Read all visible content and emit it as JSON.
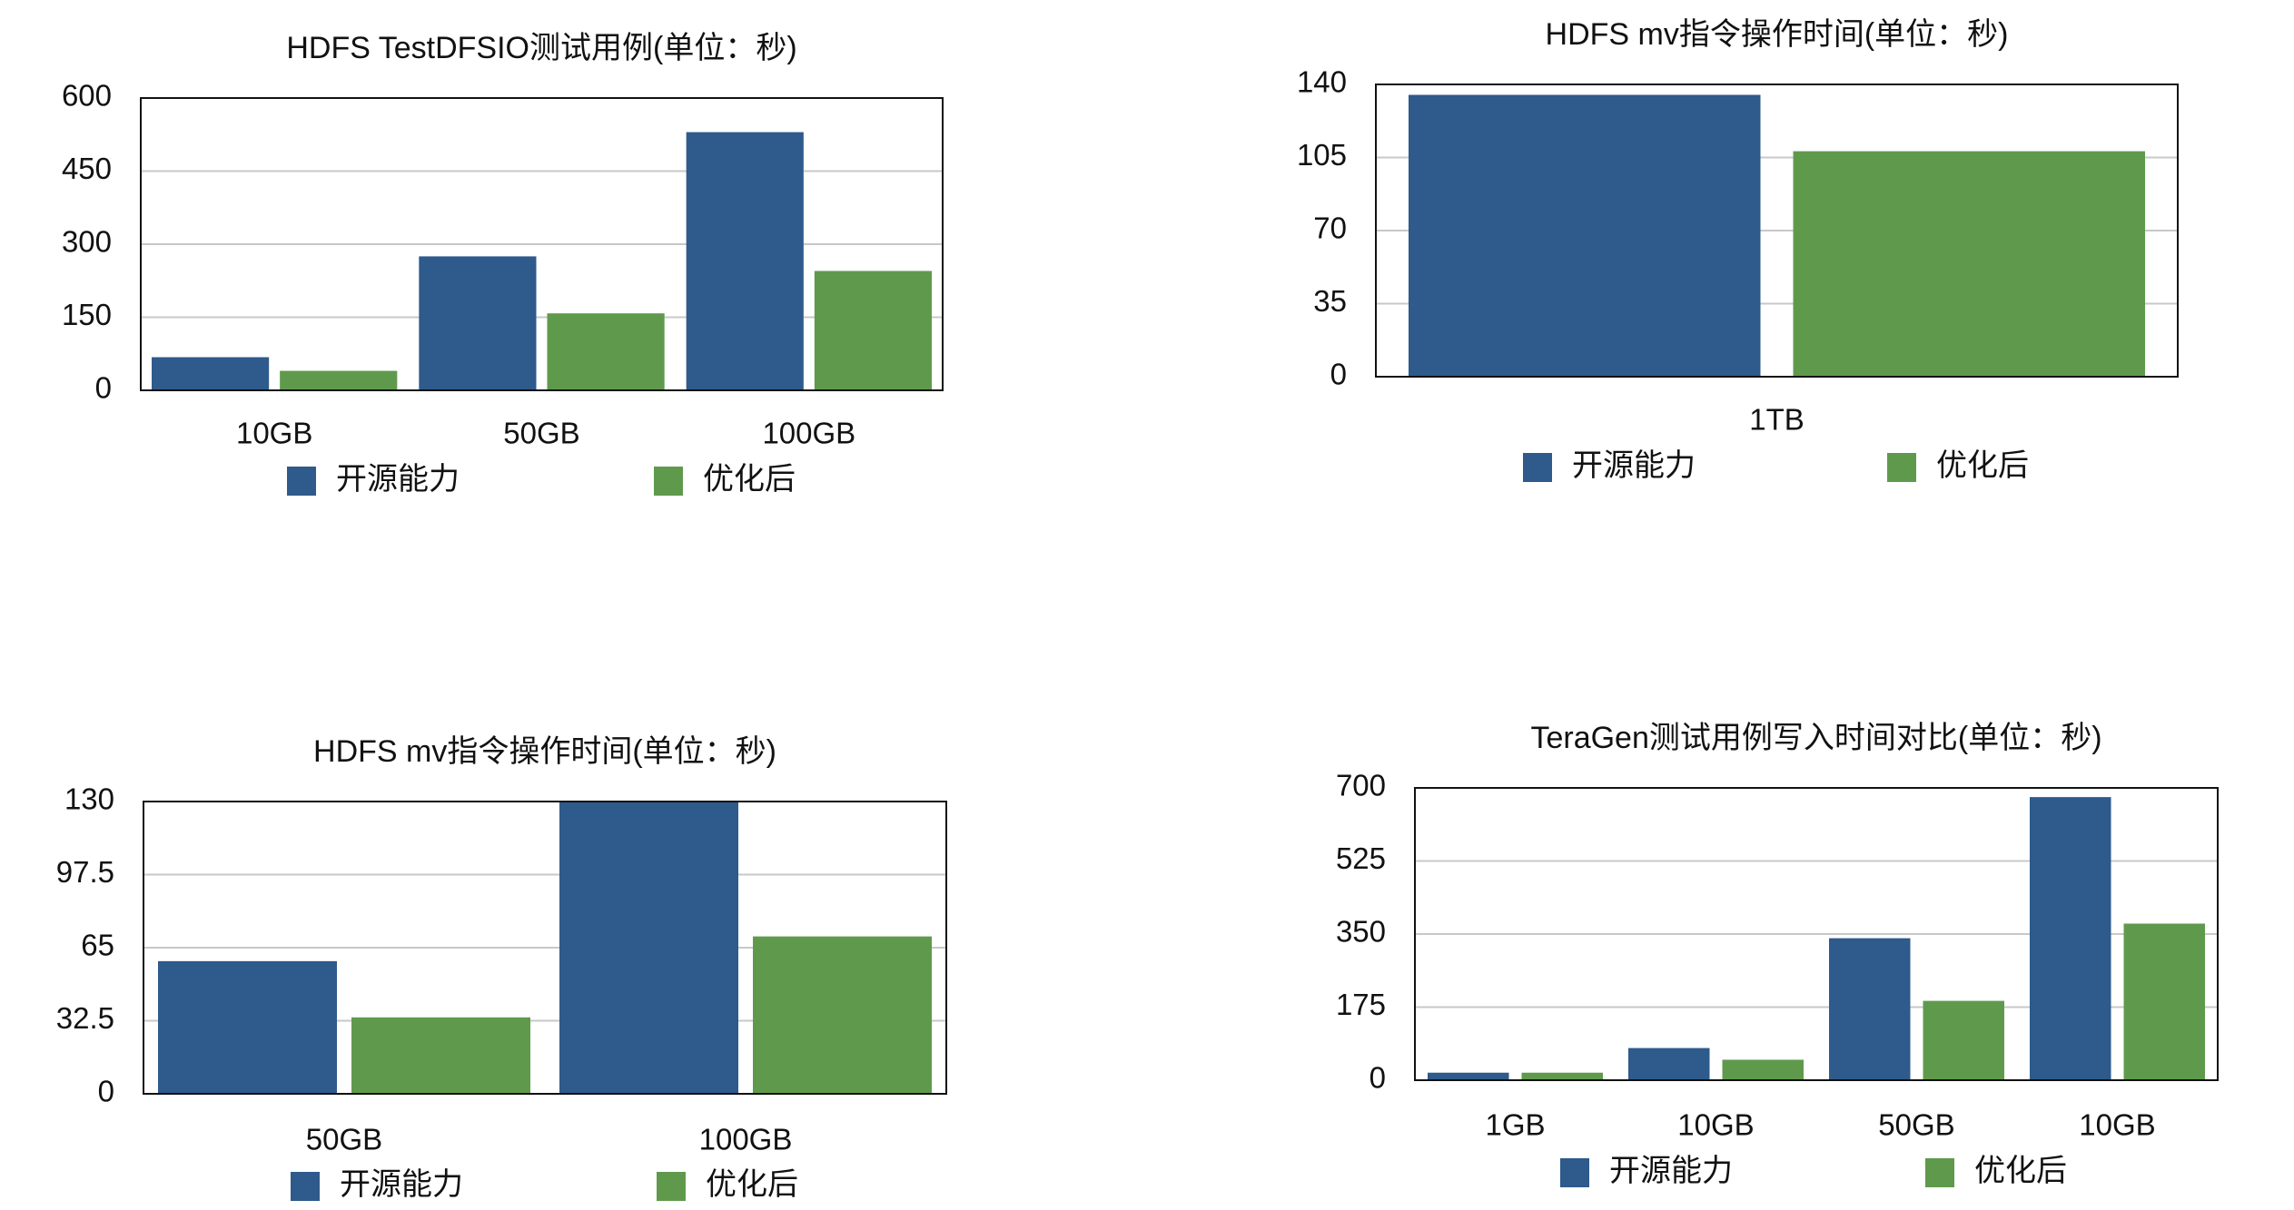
{
  "chart_data": [
    {
      "type": "bar",
      "title": "HDFS TestDFSIO测试用例(单位：秒)",
      "categories": [
        "10GB",
        "50GB",
        "100GB"
      ],
      "series": [
        {
          "name": "开源能力",
          "values": [
            68,
            275,
            530
          ]
        },
        {
          "name": "优化后",
          "values": [
            40,
            158,
            245
          ]
        }
      ],
      "ylim": [
        0,
        600
      ],
      "yticks": [
        "0",
        "150",
        "300",
        "450",
        "600"
      ],
      "grid": true,
      "legend": "bottom"
    },
    {
      "type": "bar",
      "title": "HDFS mv指令操作时间(单位：秒)",
      "categories": [
        "1TB"
      ],
      "series": [
        {
          "name": "开源能力",
          "values": [
            135
          ]
        },
        {
          "name": "优化后",
          "values": [
            108
          ]
        }
      ],
      "ylim": [
        0,
        140
      ],
      "yticks": [
        "0",
        "35",
        "70",
        "105",
        "140"
      ],
      "grid": true,
      "legend": "bottom"
    },
    {
      "type": "bar",
      "title": "HDFS mv指令操作时间(单位：秒)",
      "categories": [
        "50GB",
        "100GB"
      ],
      "series": [
        {
          "name": "开源能力",
          "values": [
            59,
            130
          ]
        },
        {
          "name": "优化后",
          "values": [
            34,
            70
          ]
        }
      ],
      "ylim": [
        0,
        130
      ],
      "yticks": [
        "0",
        "32.5",
        "65",
        "97.5",
        "130"
      ],
      "grid": true,
      "legend": "bottom"
    },
    {
      "type": "bar",
      "title": "TeraGen测试用例写入时间对比(单位：秒)",
      "categories": [
        "1GB",
        "10GB",
        "50GB",
        "10GB"
      ],
      "series": [
        {
          "name": "开源能力",
          "values": [
            18,
            77,
            340,
            678
          ]
        },
        {
          "name": "优化后",
          "values": [
            18,
            49,
            190,
            375
          ]
        }
      ],
      "ylim": [
        0,
        700
      ],
      "yticks": [
        "0",
        "175",
        "350",
        "525",
        "700"
      ],
      "grid": true,
      "legend": "bottom"
    }
  ],
  "colors": {
    "series": [
      "#2e5a8c",
      "#5f9a4c"
    ],
    "grid": "#c8c8c8",
    "axis": "#111111"
  }
}
